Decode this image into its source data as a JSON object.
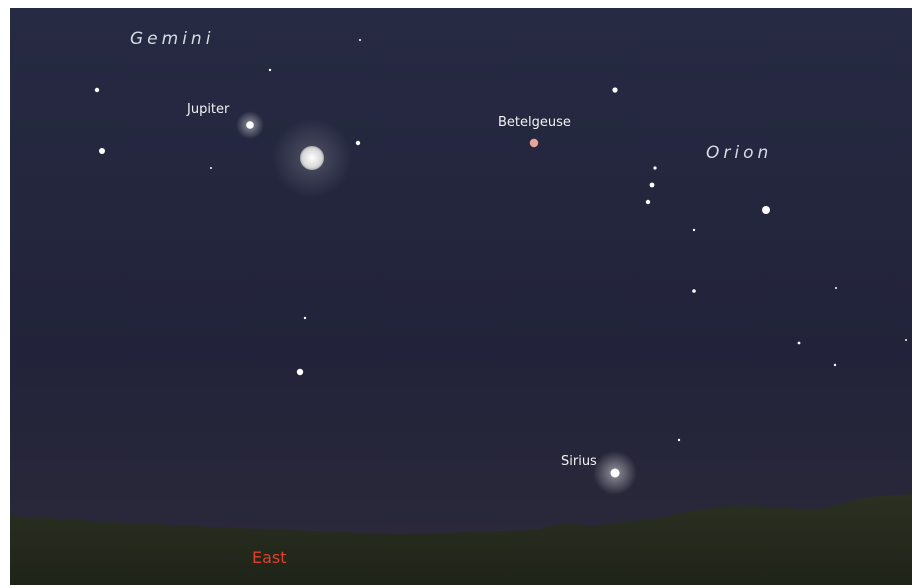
{
  "constellations": {
    "gemini": "Gemini",
    "orion": "Orion"
  },
  "objects": {
    "jupiter": "Jupiter",
    "betelgeuse": "Betelgeuse",
    "sirius": "Sirius"
  },
  "direction": "East"
}
